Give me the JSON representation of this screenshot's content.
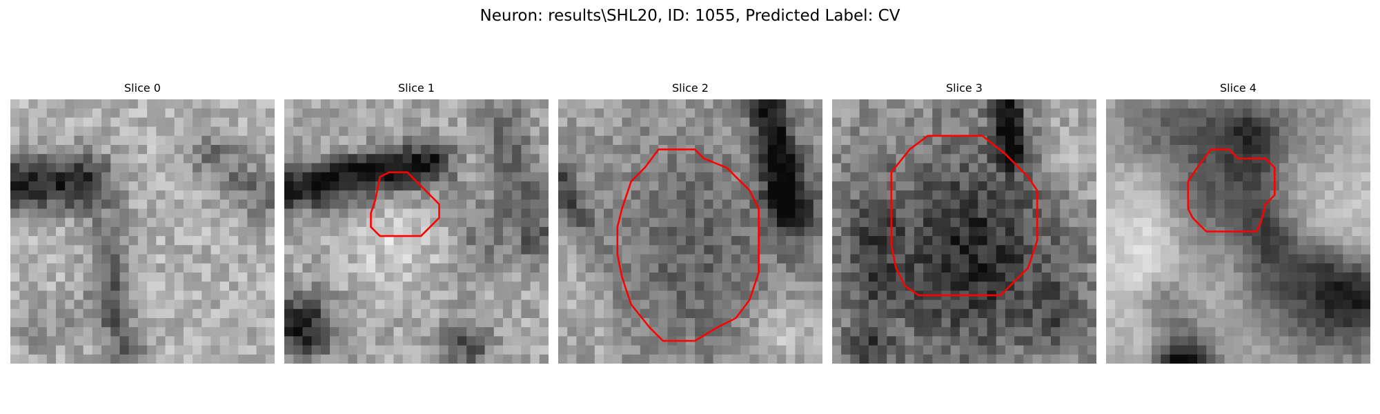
{
  "figure": {
    "title": "Neuron: results\\SHL20, ID: 1055, Predicted Label: CV"
  },
  "panels": [
    {
      "title": "Slice 0",
      "has_contour": false
    },
    {
      "title": "Slice 1",
      "has_contour": true
    },
    {
      "title": "Slice 2",
      "has_contour": true
    },
    {
      "title": "Slice 3",
      "has_contour": true
    },
    {
      "title": "Slice 4",
      "has_contour": true
    }
  ],
  "colors": {
    "contour": "#ff0000",
    "colormap": "grayscale"
  }
}
